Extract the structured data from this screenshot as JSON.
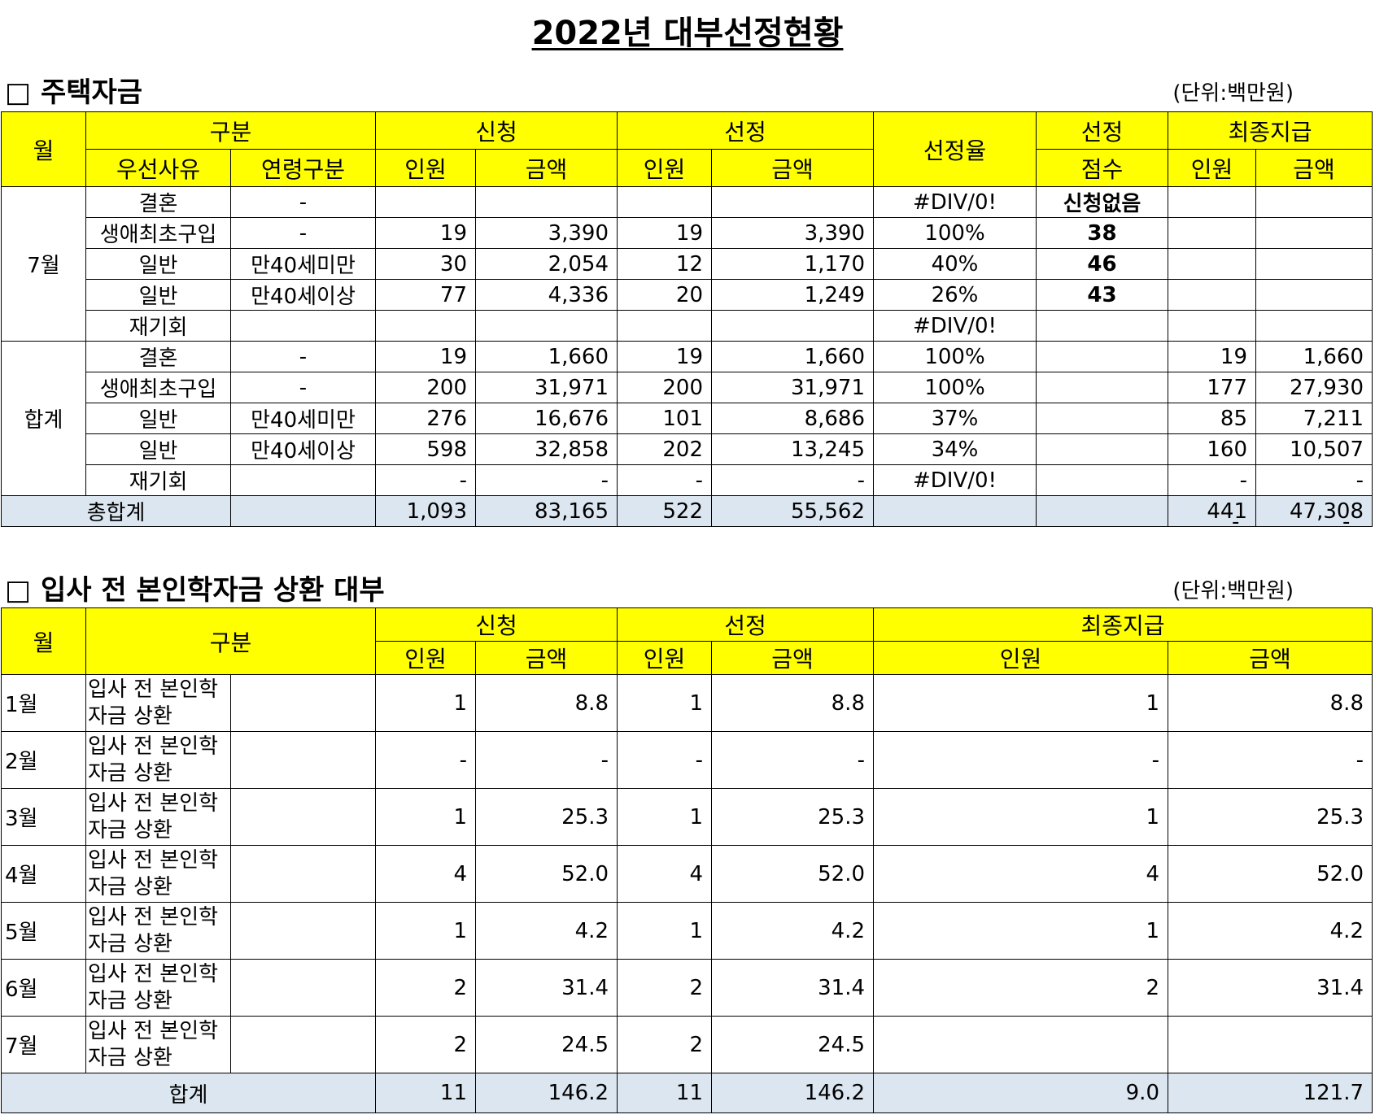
{
  "title": "2022년 대부선정현황",
  "section1": {
    "heading": "□ 주택자금",
    "unit": "(단위:백만원)",
    "headers": {
      "month": "월",
      "category": "구분",
      "priority": "우선사유",
      "age": "연령구분",
      "apply": "신청",
      "select": "선정",
      "rate": "선정율",
      "score_top": "선정",
      "score_bottom": "점수",
      "final": "최종지급",
      "people": "인원",
      "amount": "금액"
    },
    "group1_label": "7월",
    "group1_rows": [
      [
        "결혼",
        "-",
        "",
        "",
        "",
        "",
        "#DIV/0!",
        "신청없음",
        "",
        ""
      ],
      [
        "생애최초구입",
        "-",
        "19",
        "3,390",
        "19",
        "3,390",
        "100%",
        "38",
        "",
        ""
      ],
      [
        "일반",
        "만40세미만",
        "30",
        "2,054",
        "12",
        "1,170",
        "40%",
        "46",
        "",
        ""
      ],
      [
        "일반",
        "만40세이상",
        "77",
        "4,336",
        "20",
        "1,249",
        "26%",
        "43",
        "",
        ""
      ],
      [
        "재기회",
        "",
        "",
        "",
        "",
        "",
        "#DIV/0!",
        "",
        "",
        ""
      ]
    ],
    "group2_label": "합계",
    "group2_rows": [
      [
        "결혼",
        "-",
        "19",
        "1,660",
        "19",
        "1,660",
        "100%",
        "",
        "19",
        "1,660"
      ],
      [
        "생애최초구입",
        "-",
        "200",
        "31,971",
        "200",
        "31,971",
        "100%",
        "",
        "177",
        "27,930"
      ],
      [
        "일반",
        "만40세미만",
        "276",
        "16,676",
        "101",
        "8,686",
        "37%",
        "",
        "85",
        "7,211"
      ],
      [
        "일반",
        "만40세이상",
        "598",
        "32,858",
        "202",
        "13,245",
        "34%",
        "",
        "160",
        "10,507"
      ],
      [
        "재기회",
        "",
        "-",
        "-",
        "-",
        "-",
        "#DIV/0!",
        "",
        "-",
        "-"
      ]
    ],
    "total": [
      "총합계",
      "",
      "1,093",
      "83,165",
      "522",
      "55,562",
      "",
      "",
      "441",
      "47,308"
    ],
    "below": [
      "-",
      "-"
    ]
  },
  "section2": {
    "heading": "□ 입사 전 본인학자금 상환 대부",
    "unit": "(단위:백만원)",
    "headers": {
      "month": "월",
      "category": "구분",
      "apply": "신청",
      "select": "선정",
      "final": "최종지급",
      "people": "인원",
      "amount": "금액"
    },
    "rows": [
      [
        "1월",
        "입사 전 본인학자금 상환",
        "1",
        "8.8",
        "1",
        "8.8",
        "1",
        "8.8"
      ],
      [
        "2월",
        "입사 전 본인학자금 상환",
        "-",
        "-",
        "-",
        "-",
        "-",
        "-"
      ],
      [
        "3월",
        "입사 전 본인학자금 상환",
        "1",
        "25.3",
        "1",
        "25.3",
        "1",
        "25.3"
      ],
      [
        "4월",
        "입사 전 본인학자금 상환",
        "4",
        "52.0",
        "4",
        "52.0",
        "4",
        "52.0"
      ],
      [
        "5월",
        "입사 전 본인학자금 상환",
        "1",
        "4.2",
        "1",
        "4.2",
        "1",
        "4.2"
      ],
      [
        "6월",
        "입사 전 본인학자금 상환",
        "2",
        "31.4",
        "2",
        "31.4",
        "2",
        "31.4"
      ],
      [
        "7월",
        "입사 전 본인학자금 상환",
        "2",
        "24.5",
        "2",
        "24.5",
        "",
        ""
      ]
    ],
    "total": [
      "합계",
      "11",
      "146.2",
      "11",
      "146.2",
      "9.0",
      "121.7"
    ]
  }
}
